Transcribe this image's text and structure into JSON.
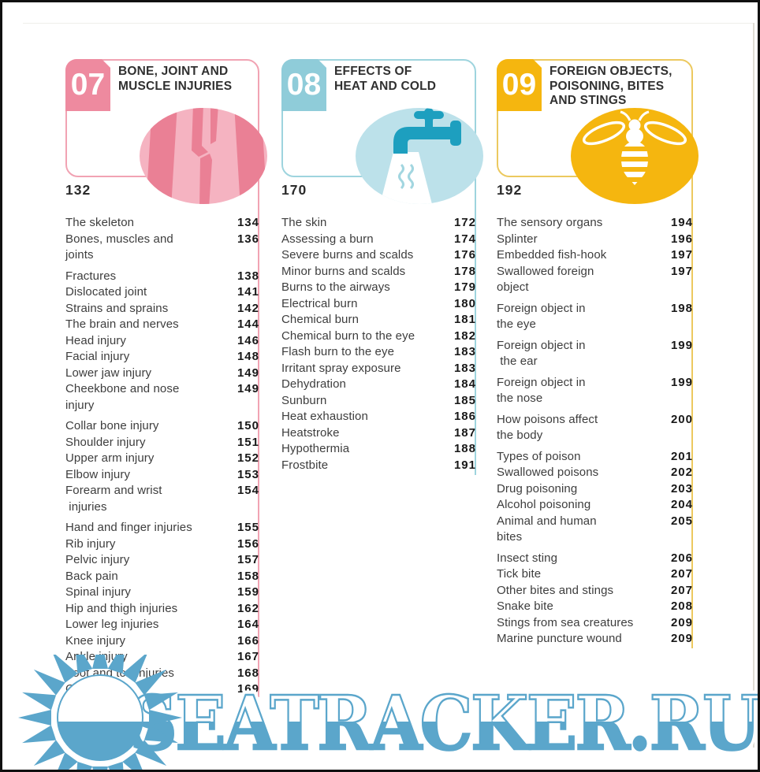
{
  "page": {
    "kind": "book-contents-page",
    "watermark": {
      "text": "SEATRACKER.RU",
      "color": "#5ba6cb"
    }
  },
  "chapters": [
    {
      "number": "07",
      "title": "BONE, JOINT AND\nMUSCLE INJURIES",
      "start_page": "132",
      "icon": "fractured-bone-illustration",
      "colors": {
        "badge": "#ee8a9f",
        "border": "#f1a3b3",
        "circle": "#f5b3c1",
        "accent": "#ea8095"
      },
      "entries": [
        {
          "title": "The skeleton",
          "page": "134"
        },
        {
          "title": "Bones, muscles and\njoints",
          "page": "136"
        },
        {
          "title": "Fractures",
          "page": "138"
        },
        {
          "title": "Dislocated joint",
          "page": "141"
        },
        {
          "title": "Strains and sprains",
          "page": "142"
        },
        {
          "title": "The brain and nerves",
          "page": "144"
        },
        {
          "title": "Head injury",
          "page": "146"
        },
        {
          "title": "Facial injury",
          "page": "148"
        },
        {
          "title": "Lower jaw injury",
          "page": "149"
        },
        {
          "title": "Cheekbone and nose\ninjury",
          "page": "149"
        },
        {
          "title": "Collar bone injury",
          "page": "150"
        },
        {
          "title": "Shoulder injury",
          "page": "151"
        },
        {
          "title": "Upper arm injury",
          "page": "152"
        },
        {
          "title": "Elbow injury",
          "page": "153"
        },
        {
          "title": "Forearm and wrist\n injuries",
          "page": "154"
        },
        {
          "title": "Hand and finger injuries",
          "page": "155"
        },
        {
          "title": "Rib injury",
          "page": "156"
        },
        {
          "title": "Pelvic injury",
          "page": "157"
        },
        {
          "title": "Back pain",
          "page": "158"
        },
        {
          "title": "Spinal injury",
          "page": "159"
        },
        {
          "title": "Hip and thigh injuries",
          "page": "162"
        },
        {
          "title": "Lower leg injuries",
          "page": "164"
        },
        {
          "title": "Knee injury",
          "page": "166"
        },
        {
          "title": "Ankle injury",
          "page": "167"
        },
        {
          "title": "Foot and toe injuries",
          "page": "168"
        },
        {
          "title": "Cramp",
          "page": "169"
        }
      ]
    },
    {
      "number": "08",
      "title": "EFFECTS OF\nHEAT AND COLD",
      "start_page": "170",
      "icon": "running-tap-illustration",
      "colors": {
        "badge": "#8fccd9",
        "border": "#9ed4de",
        "circle": "#bce1ea",
        "accent": "#1d9fbf"
      },
      "entries": [
        {
          "title": "The skin",
          "page": "172"
        },
        {
          "title": "Assessing a burn",
          "page": "174"
        },
        {
          "title": "Severe burns and scalds",
          "page": "176"
        },
        {
          "title": "Minor burns and scalds",
          "page": "178"
        },
        {
          "title": "Burns to the airways",
          "page": "179"
        },
        {
          "title": "Electrical burn",
          "page": "180"
        },
        {
          "title": "Chemical burn",
          "page": "181"
        },
        {
          "title": "Chemical burn to the eye",
          "page": "182"
        },
        {
          "title": "Flash burn to the eye",
          "page": "183"
        },
        {
          "title": "Irritant spray exposure",
          "page": "183"
        },
        {
          "title": "Dehydration",
          "page": "184"
        },
        {
          "title": "Sunburn",
          "page": "185"
        },
        {
          "title": "Heat exhaustion",
          "page": "186"
        },
        {
          "title": "Heatstroke",
          "page": "187"
        },
        {
          "title": "Hypothermia",
          "page": "188"
        },
        {
          "title": "Frostbite",
          "page": "191"
        }
      ]
    },
    {
      "number": "09",
      "title": "FOREIGN OBJECTS,\nPOISONING, BITES\nAND STINGS",
      "start_page": "192",
      "icon": "bee-illustration",
      "colors": {
        "badge": "#f5b60f",
        "border": "#ecc95f",
        "circle": "#f5b60f",
        "accent": "#ffffff"
      },
      "entries": [
        {
          "title": "The sensory organs",
          "page": "194"
        },
        {
          "title": "Splinter",
          "page": "196"
        },
        {
          "title": "Embedded fish-hook",
          "page": "197"
        },
        {
          "title": "Swallowed foreign\nobject",
          "page": "197"
        },
        {
          "title": "Foreign object in\nthe eye",
          "page": "198"
        },
        {
          "title": "Foreign object in\n the ear",
          "page": "199"
        },
        {
          "title": "Foreign object in\nthe nose",
          "page": "199"
        },
        {
          "title": "How poisons affect\nthe body",
          "page": "200"
        },
        {
          "title": "Types of poison",
          "page": "201"
        },
        {
          "title": "Swallowed poisons",
          "page": "202"
        },
        {
          "title": "Drug poisoning",
          "page": "203"
        },
        {
          "title": "Alcohol poisoning",
          "page": "204"
        },
        {
          "title": "Animal and human\nbites",
          "page": "205"
        },
        {
          "title": "Insect sting",
          "page": "206"
        },
        {
          "title": "Tick bite",
          "page": "207"
        },
        {
          "title": "Other bites and stings",
          "page": "207"
        },
        {
          "title": "Snake bite",
          "page": "208"
        },
        {
          "title": "Stings from sea creatures",
          "page": "209"
        },
        {
          "title": "Marine puncture wound",
          "page": "209"
        }
      ]
    }
  ]
}
